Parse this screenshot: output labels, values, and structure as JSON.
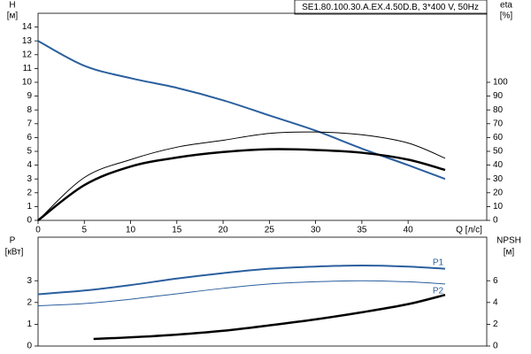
{
  "chart_data": [
    {
      "type": "line",
      "title": "SE1.80.100.30.A.EX.4.50D.B, 3*400 V, 50Hz",
      "ylabel": "H",
      "yunit": "[м]",
      "y2label": "eta",
      "y2unit": "[%]",
      "xlabel": "Q [л/с]",
      "x": [
        0,
        5,
        10,
        15,
        20,
        25,
        30,
        35,
        40,
        44
      ],
      "xlim": [
        0,
        48.5
      ],
      "xticks": [
        0,
        5,
        10,
        15,
        20,
        25,
        30,
        35,
        40
      ],
      "ylim": [
        0,
        15
      ],
      "yticks": [
        0,
        1,
        2,
        3,
        4,
        5,
        6,
        7,
        8,
        9,
        10,
        11,
        12,
        13,
        14
      ],
      "y2lim": [
        0,
        150
      ],
      "y2ticks": [
        0,
        10,
        20,
        30,
        40,
        50,
        60,
        70,
        80,
        90,
        100
      ],
      "series": [
        {
          "color": "#2b5f9e",
          "line_width": 2,
          "values": [
            13,
            11.2,
            10.3,
            9.6,
            8.7,
            7.6,
            6.5,
            5.2,
            4.0,
            3.0
          ]
        },
        {
          "color": "#000000",
          "line_width": 1,
          "axis": "y2",
          "values": [
            0,
            31,
            44,
            53,
            58,
            63,
            64,
            62,
            56,
            45
          ]
        },
        {
          "color": "#000000",
          "line_width": 2.5,
          "axis": "y2",
          "values": [
            0,
            25.5,
            39,
            45.5,
            49.5,
            51.5,
            51,
            49,
            44,
            36.5
          ]
        }
      ]
    },
    {
      "type": "line",
      "ylabel": "P",
      "yunit": "[кВт]",
      "y2label": "NPSH",
      "y2unit": "[м]",
      "xlim": [
        0,
        48.5
      ],
      "ylim": [
        0,
        5
      ],
      "yticks": [
        0,
        1,
        2,
        3
      ],
      "y2lim": [
        0,
        10
      ],
      "y2ticks": [
        0,
        2,
        4,
        6
      ],
      "series": [
        {
          "label": "P1",
          "color": "#2b5f9e",
          "line_width": 2,
          "x": [
            0,
            5,
            10,
            15,
            20,
            25,
            30,
            35,
            40,
            44
          ],
          "values": [
            2.38,
            2.55,
            2.8,
            3.1,
            3.35,
            3.55,
            3.65,
            3.7,
            3.65,
            3.55
          ]
        },
        {
          "label": "P2",
          "color": "#2b5f9e",
          "line_width": 1,
          "x": [
            0,
            5,
            10,
            15,
            20,
            25,
            30,
            35,
            40,
            44
          ],
          "values": [
            1.85,
            1.95,
            2.15,
            2.4,
            2.65,
            2.85,
            2.95,
            3.0,
            2.95,
            2.85
          ]
        },
        {
          "color": "#000000",
          "line_width": 2.5,
          "axis": "y2",
          "x": [
            6,
            10,
            15,
            20,
            25,
            30,
            35,
            40,
            44
          ],
          "values": [
            0.65,
            0.8,
            1.05,
            1.4,
            1.9,
            2.45,
            3.1,
            3.85,
            4.7
          ]
        }
      ]
    }
  ]
}
